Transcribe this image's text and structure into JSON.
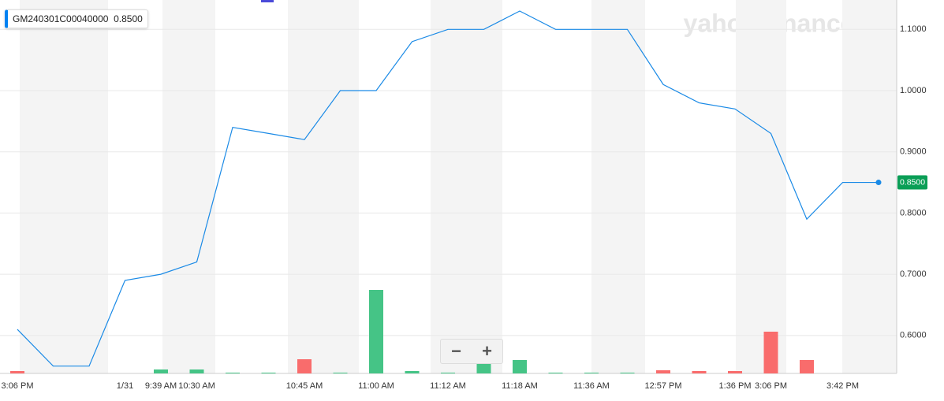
{
  "chart_data": {
    "type": "line",
    "legend_name": "GM240301C00040000",
    "legend_value": "0.8500",
    "last_label": "0.8500",
    "watermark": "yahoo!finance",
    "categories": [
      "3:06 PM",
      null,
      null,
      "1/31",
      "9:39 AM",
      "10:30 AM",
      null,
      null,
      "10:45 AM",
      null,
      "11:00 AM",
      null,
      "11:12 AM",
      null,
      "11:18 AM",
      null,
      "11:36 AM",
      null,
      "12:57 PM",
      null,
      "1:36 PM",
      "3:06 PM",
      null,
      "3:42 PM",
      null
    ],
    "series": [
      {
        "name": "GM240301C00040000",
        "color": "#1a8ae6",
        "values": [
          0.61,
          0.55,
          0.55,
          0.69,
          0.7,
          0.72,
          0.94,
          0.93,
          0.92,
          1.0,
          1.0,
          1.08,
          1.1,
          1.1,
          1.13,
          1.1,
          1.1,
          1.1,
          1.01,
          0.98,
          0.97,
          0.93,
          0.79,
          0.85,
          0.85
        ]
      }
    ],
    "volume": [
      3,
      0,
      0,
      0,
      5,
      5,
      1,
      1,
      18,
      1,
      106,
      3,
      1,
      14,
      17,
      1,
      1,
      1,
      4,
      3,
      3,
      53,
      17,
      0,
      0
    ],
    "volume_colors": [
      "#f96c6c",
      null,
      null,
      null,
      "#45c486",
      "#45c486",
      "#45c486",
      "#45c486",
      "#f96c6c",
      "#45c486",
      "#45c486",
      "#45c486",
      "#45c486",
      "#45c486",
      "#45c486",
      "#45c486",
      "#45c486",
      "#45c486",
      "#f96c6c",
      "#f96c6c",
      "#f96c6c",
      "#f96c6c",
      "#f96c6c",
      null,
      null
    ],
    "ylim": [
      0.538,
      1.148
    ],
    "yticks": [
      {
        "value": 0.6,
        "label": "0.6000"
      },
      {
        "value": 0.7,
        "label": "0.7000"
      },
      {
        "value": 0.8,
        "label": "0.8000"
      },
      {
        "value": 0.9,
        "label": "0.9000"
      },
      {
        "value": 1.0,
        "label": "1.0000"
      },
      {
        "value": 1.1,
        "label": "1.1000"
      }
    ],
    "grid": true,
    "last_color": "#0a9e56",
    "zoom_controls": [
      "−",
      "+"
    ]
  }
}
